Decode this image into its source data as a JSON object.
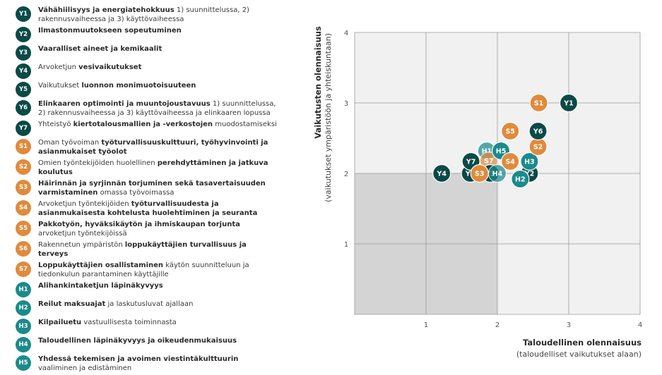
{
  "colors": {
    "Y": "#0b4a47",
    "S": "#e08a3c",
    "H": "#1b8a8c",
    "grid": "#9a9a9a",
    "bg_light": "#f1f1f1",
    "bg_dark": "#d4d4d4"
  },
  "legend": [
    {
      "code": "Y1",
      "group": "Y",
      "parts": [
        {
          "t": "Vähähiilisyys ja energiatehokkuus",
          "b": true
        },
        {
          "t": " 1) suunnittelussa, 2) rakennusvaiheessa ja 3) käyttövaiheessa",
          "b": false
        }
      ]
    },
    {
      "code": "Y2",
      "group": "Y",
      "parts": [
        {
          "t": "Ilmastonmuutokseen sopeutuminen",
          "b": true
        }
      ]
    },
    {
      "code": "Y3",
      "group": "Y",
      "parts": [
        {
          "t": "Vaaralliset aineet ja kemikaalit",
          "b": true
        }
      ]
    },
    {
      "code": "Y4",
      "group": "Y",
      "parts": [
        {
          "t": "Arvoketjun ",
          "b": false
        },
        {
          "t": "vesivaikutukset",
          "b": true
        }
      ]
    },
    {
      "code": "Y5",
      "group": "Y",
      "parts": [
        {
          "t": "Vaikutukset ",
          "b": false
        },
        {
          "t": "luonnon monimuotoisuuteen",
          "b": true
        }
      ]
    },
    {
      "code": "Y6",
      "group": "Y",
      "parts": [
        {
          "t": "Elinkaaren optimointi ja muuntojoustavuus",
          "b": true
        },
        {
          "t": " 1) suunnittelussa, 2) rakennusvaiheessa ja 3) käyttövaiheessa ja elinkaaren lopussa",
          "b": false
        }
      ]
    },
    {
      "code": "Y7",
      "group": "Y",
      "parts": [
        {
          "t": "Yhteistyö ",
          "b": false
        },
        {
          "t": "kiertotalousmallien ja -verkostojen",
          "b": true
        },
        {
          "t": " muodostamiseksi",
          "b": false
        }
      ]
    },
    {
      "code": "S1",
      "group": "S",
      "parts": [
        {
          "t": "Oman työvoiman ",
          "b": false
        },
        {
          "t": "työturvallisuuskulttuuri, työhyvinvointi ja asianmukaiset työolot",
          "b": true
        }
      ]
    },
    {
      "code": "S2",
      "group": "S",
      "parts": [
        {
          "t": "Omien työntekijöiden huolellinen ",
          "b": false
        },
        {
          "t": "perehdyttäminen ja jatkuva koulutus",
          "b": true
        }
      ]
    },
    {
      "code": "S3",
      "group": "S",
      "parts": [
        {
          "t": "Häirinnän ja syrjinnän torjuminen sekä tasavertaisuuden varmistaminen",
          "b": true
        },
        {
          "t": " omassa työvoimassa",
          "b": false
        }
      ]
    },
    {
      "code": "S4",
      "group": "S",
      "parts": [
        {
          "t": "Arvoketjun työntekijöiden ",
          "b": false
        },
        {
          "t": "työturvallisuudesta ja asianmukaisesta kohtelusta huolehtiminen ja seuranta",
          "b": true
        }
      ]
    },
    {
      "code": "S5",
      "group": "S",
      "parts": [
        {
          "t": "Pakkotyön, hyväksikäytön ja ihmiskaupan torjunta",
          "b": true
        },
        {
          "t": " arvoketjun työntekijöissä",
          "b": false
        }
      ]
    },
    {
      "code": "S6",
      "group": "S",
      "parts": [
        {
          "t": "Rakennetun ympäristön ",
          "b": false
        },
        {
          "t": "loppukäyttäjien turvallisuus ja terveys",
          "b": true
        }
      ]
    },
    {
      "code": "S7",
      "group": "S",
      "parts": [
        {
          "t": "Loppukäyttäjien osallistaminen",
          "b": true
        },
        {
          "t": " käytön suunnitteluun ja tiedonkulun parantaminen käyttäjille",
          "b": false
        }
      ]
    },
    {
      "code": "H1",
      "group": "H",
      "parts": [
        {
          "t": "Alihankintaketjun läpinäkyvyys",
          "b": true
        }
      ]
    },
    {
      "code": "H2",
      "group": "H",
      "parts": [
        {
          "t": "Reilut maksuajat",
          "b": true
        },
        {
          "t": " ja laskutusluvat ajallaan",
          "b": false
        }
      ]
    },
    {
      "code": "H3",
      "group": "H",
      "parts": [
        {
          "t": "Kilpailuetu",
          "b": true
        },
        {
          "t": " vastuullisesta toiminnasta",
          "b": false
        }
      ]
    },
    {
      "code": "H4",
      "group": "H",
      "parts": [
        {
          "t": "Taloudellinen läpinäkyvyys ja oikeudenmukaisuus",
          "b": true
        }
      ]
    },
    {
      "code": "H5",
      "group": "H",
      "parts": [
        {
          "t": "Yhdessä tekemisen ja avoimen viestintäkulttuurin",
          "b": true
        },
        {
          "t": " vaaliminen ja edistäminen",
          "b": false
        }
      ]
    }
  ],
  "chart_data": {
    "type": "scatter",
    "title": "",
    "xlabel": "Taloudellinen olennaisuus",
    "xlabel_sub": "(taloudelliset vaikutukset alaan)",
    "ylabel": "Vaikutusten olennaisuus",
    "ylabel_sub": "(vaikutukset ympäristöön ja yhteiskuntaan)",
    "xlim": [
      0,
      4
    ],
    "ylim": [
      0,
      4
    ],
    "x_ticks": [
      "1",
      "2",
      "3",
      "4"
    ],
    "y_ticks": [
      "1",
      "2",
      "3",
      "4"
    ],
    "grid": true,
    "shaded_region": {
      "x": [
        0,
        2
      ],
      "y": [
        0,
        2
      ]
    },
    "points": [
      {
        "label": "H1",
        "group": "H",
        "x": 1.85,
        "y": 2.32,
        "faded": true
      },
      {
        "label": "S7",
        "group": "S",
        "x": 1.88,
        "y": 2.18,
        "faded": true
      },
      {
        "label": "Y5",
        "group": "Y",
        "x": 1.62,
        "y": 2.0
      },
      {
        "label": "Y3",
        "group": "Y",
        "x": 1.9,
        "y": 2.0
      },
      {
        "label": "H4",
        "group": "H",
        "x": 2.0,
        "y": 2.0,
        "faded": true
      },
      {
        "label": "Y4",
        "group": "Y",
        "x": 1.22,
        "y": 2.0
      },
      {
        "label": "Y7",
        "group": "Y",
        "x": 1.63,
        "y": 2.17
      },
      {
        "label": "S3",
        "group": "S",
        "x": 1.75,
        "y": 2.0
      },
      {
        "label": "H5",
        "group": "H",
        "x": 2.05,
        "y": 2.32
      },
      {
        "label": "S4",
        "group": "S",
        "x": 2.18,
        "y": 2.17
      },
      {
        "label": "Y2",
        "group": "Y",
        "x": 2.45,
        "y": 2.0
      },
      {
        "label": "H3",
        "group": "H",
        "x": 2.45,
        "y": 2.17
      },
      {
        "label": "H2",
        "group": "H",
        "x": 2.32,
        "y": 1.92
      },
      {
        "label": "S2",
        "group": "S",
        "x": 2.57,
        "y": 2.38
      },
      {
        "label": "Y6",
        "group": "Y",
        "x": 2.57,
        "y": 2.6
      },
      {
        "label": "S5",
        "group": "S",
        "x": 2.18,
        "y": 2.6
      },
      {
        "label": "S1",
        "group": "S",
        "x": 2.58,
        "y": 3.0
      },
      {
        "label": "Y1",
        "group": "Y",
        "x": 3.0,
        "y": 3.0
      }
    ]
  }
}
